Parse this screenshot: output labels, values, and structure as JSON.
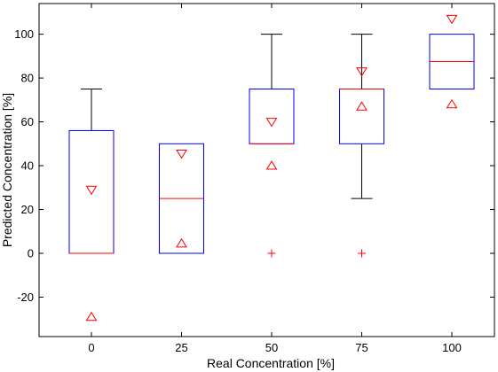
{
  "chart_data": {
    "type": "box",
    "title": "",
    "xlabel": "Real Concentration [%]",
    "ylabel": "Predicted Concentration [%]",
    "categories": [
      "0",
      "25",
      "50",
      "75",
      "100"
    ],
    "ylim": [
      -38,
      114
    ],
    "yticks": [
      -20,
      0,
      20,
      40,
      60,
      80,
      100
    ],
    "grid": false,
    "colors": {
      "box": "#0000ff",
      "median": "#ff0000",
      "whisker": "#000000",
      "marker": "#ff0000"
    },
    "boxes": [
      {
        "category": "0",
        "q1": 0,
        "median": 0,
        "q3": 56,
        "whisker_low": null,
        "whisker_high": 75,
        "notch_upper": 29,
        "notch_lower": -29,
        "outliers": []
      },
      {
        "category": "25",
        "q1": 0,
        "median": 25,
        "q3": 50,
        "whisker_low": null,
        "whisker_high": null,
        "notch_upper": 45.5,
        "notch_lower": 4.5,
        "outliers": []
      },
      {
        "category": "50",
        "q1": 50,
        "median": 50,
        "q3": 75,
        "whisker_low": null,
        "whisker_high": 100,
        "notch_upper": 60,
        "notch_lower": 40,
        "outliers": [
          0
        ]
      },
      {
        "category": "75",
        "q1": 50,
        "median": 75,
        "q3": 75,
        "whisker_low": 25,
        "whisker_high": 100,
        "notch_upper": 83,
        "notch_lower": 67,
        "outliers": [
          0
        ]
      },
      {
        "category": "100",
        "q1": 75,
        "median": 87.5,
        "q3": 100,
        "whisker_low": null,
        "whisker_high": null,
        "notch_upper": 107,
        "notch_lower": 68,
        "outliers": []
      }
    ]
  }
}
